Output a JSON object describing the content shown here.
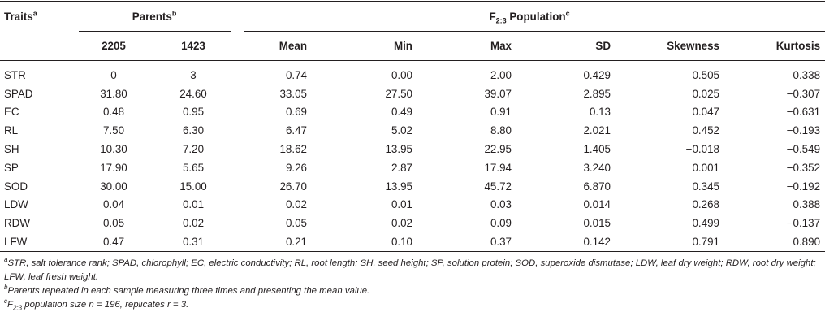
{
  "header": {
    "traits_label": "Traits",
    "traits_sup": "a",
    "parents_label": "Parents",
    "parents_sup": "b",
    "population_label_main": "F",
    "population_label_sub": "2:3",
    "population_label_rest": " Population",
    "population_sup": "c",
    "columns": [
      "2205",
      "1423",
      "Mean",
      "Min",
      "Max",
      "SD",
      "Skewness",
      "Kurtosis"
    ]
  },
  "rows": [
    {
      "trait": "STR",
      "p1": "0",
      "p2": "3",
      "mean": "0.74",
      "min": "0.00",
      "max": "2.00",
      "sd": "0.429",
      "skew": "0.505",
      "kurt": "0.338"
    },
    {
      "trait": "SPAD",
      "p1": "31.80",
      "p2": "24.60",
      "mean": "33.05",
      "min": "27.50",
      "max": "39.07",
      "sd": "2.895",
      "skew": "0.025",
      "kurt": "−0.307"
    },
    {
      "trait": "EC",
      "p1": "0.48",
      "p2": "0.95",
      "mean": "0.69",
      "min": "0.49",
      "max": "0.91",
      "sd": "0.13",
      "skew": "0.047",
      "kurt": "−0.631"
    },
    {
      "trait": "RL",
      "p1": "7.50",
      "p2": "6.30",
      "mean": "6.47",
      "min": "5.02",
      "max": "8.80",
      "sd": "2.021",
      "skew": "0.452",
      "kurt": "−0.193"
    },
    {
      "trait": "SH",
      "p1": "10.30",
      "p2": "7.20",
      "mean": "18.62",
      "min": "13.95",
      "max": "22.95",
      "sd": "1.405",
      "skew": "−0.018",
      "kurt": "−0.549"
    },
    {
      "trait": "SP",
      "p1": "17.90",
      "p2": "5.65",
      "mean": "9.26",
      "min": "2.87",
      "max": "17.94",
      "sd": "3.240",
      "skew": "0.001",
      "kurt": "−0.352"
    },
    {
      "trait": "SOD",
      "p1": "30.00",
      "p2": "15.00",
      "mean": "26.70",
      "min": "13.95",
      "max": "45.72",
      "sd": "6.870",
      "skew": "0.345",
      "kurt": "−0.192"
    },
    {
      "trait": "LDW",
      "p1": "0.04",
      "p2": "0.01",
      "mean": "0.02",
      "min": "0.01",
      "max": "0.03",
      "sd": "0.014",
      "skew": "0.268",
      "kurt": "0.388"
    },
    {
      "trait": "RDW",
      "p1": "0.05",
      "p2": "0.02",
      "mean": "0.05",
      "min": "0.02",
      "max": "0.09",
      "sd": "0.015",
      "skew": "0.499",
      "kurt": "−0.137"
    },
    {
      "trait": "LFW",
      "p1": "0.47",
      "p2": "0.31",
      "mean": "0.21",
      "min": "0.10",
      "max": "0.37",
      "sd": "0.142",
      "skew": "0.791",
      "kurt": "0.890"
    }
  ],
  "footnotes": {
    "a_mark": "a",
    "a_text": "STR, salt tolerance rank; SPAD, chlorophyll; EC, electric conductivity; RL, root length; SH, seed height; SP, solution protein; SOD, superoxide dismutase; LDW, leaf dry weight; RDW, root dry weight; LFW, leaf fresh weight.",
    "b_mark": "b",
    "b_text": "Parents repeated in each sample measuring three times and presenting the mean value.",
    "c_mark": "c",
    "c_text_f": "F",
    "c_text_sub": "2:3",
    "c_text_rest": " population size n = 196, replicates r = 3."
  }
}
